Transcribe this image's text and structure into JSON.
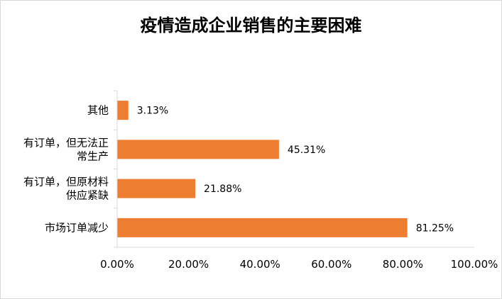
{
  "chart_data": {
    "type": "bar",
    "orientation": "horizontal",
    "title": "疫情造成企业销售的主要困难",
    "categories": [
      [
        "其他"
      ],
      [
        "有订单，但无法正",
        "常生产"
      ],
      [
        "有订单，但原材料",
        "供应紧缺"
      ],
      [
        "市场订单减少"
      ]
    ],
    "values": [
      3.13,
      45.31,
      21.88,
      81.25
    ],
    "data_labels": [
      "3.13%",
      "45.31%",
      "21.88%",
      "81.25%"
    ],
    "x_ticks": [
      "0.00%",
      "20.00%",
      "40.00%",
      "60.00%",
      "80.00%",
      "100.00%"
    ],
    "xlim": [
      0,
      100
    ],
    "grid": false,
    "legend": "none",
    "bar_color": "#ED7D31",
    "axis_color": "#D9D9D9"
  }
}
